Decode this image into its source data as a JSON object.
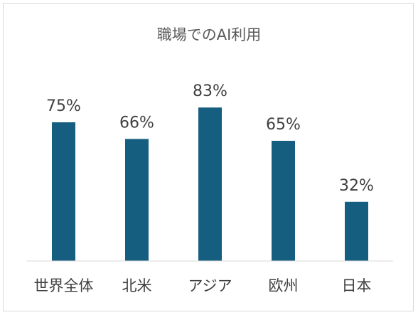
{
  "chart_data": {
    "type": "bar",
    "title": "職場でのAI利用",
    "categories": [
      "世界全体",
      "北米",
      "アジア",
      "欧州",
      "日本"
    ],
    "values": [
      75,
      66,
      83,
      65,
      32
    ],
    "value_labels": [
      "75%",
      "66%",
      "83%",
      "65%",
      "32%"
    ],
    "unit": "%",
    "ylim": [
      0,
      100
    ],
    "grid": false,
    "legend": "none",
    "bar_color": "#165E80",
    "axis_color": "#d9d9d9"
  }
}
